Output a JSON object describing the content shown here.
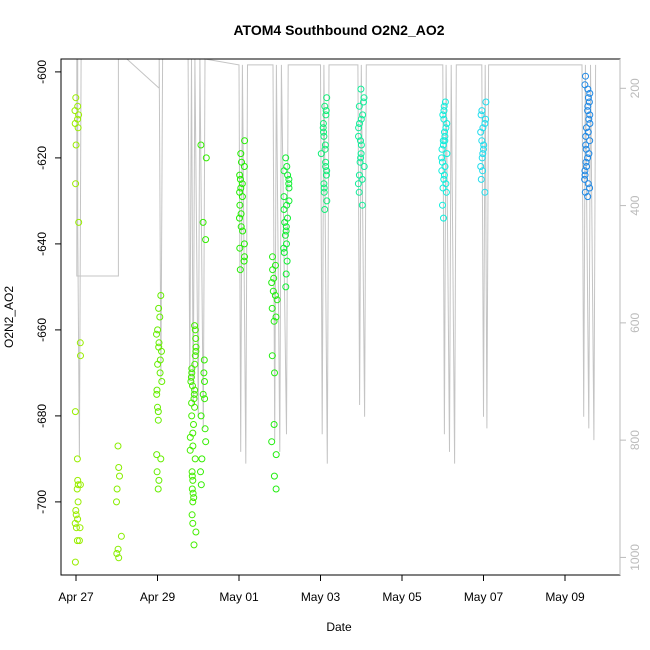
{
  "chart_data": {
    "type": "scatter",
    "title": "ATOM4 Southbound O2N2_AO2",
    "xlabel": "Date",
    "ylabel": "O2N2_AO2",
    "x_ticks": [
      "Apr 27",
      "Apr 29",
      "May 01",
      "May 03",
      "May 05",
      "May 07",
      "May 09"
    ],
    "y_ticks": [
      -700,
      -680,
      -660,
      -640,
      -620,
      -600
    ],
    "y2_ticks": [
      200,
      400,
      600,
      800,
      1000
    ],
    "xlim": [
      "2016-04-26T11:00",
      "2016-05-10T04:00"
    ],
    "ylim": [
      -717,
      -597
    ],
    "y2lim": [
      1030,
      150
    ],
    "grid": false,
    "legend": "none",
    "series": [
      {
        "x": "2016-04-27T01:00",
        "color": "#99ee00",
        "values": [
          -704,
          -700,
          -714,
          -703,
          -709,
          -695,
          -705,
          -706,
          -696,
          -697,
          -706,
          -709,
          -610,
          -612,
          -608,
          -617,
          -635,
          -626,
          -613,
          -611,
          -606,
          -609,
          -663,
          -666,
          -679,
          -690,
          -696,
          -702
        ]
      },
      {
        "x": "2016-04-28T01:00",
        "color": "#88ee00",
        "values": [
          -687,
          -692,
          -694,
          -697,
          -700,
          -708,
          -711,
          -712,
          -713
        ]
      },
      {
        "x": "2016-04-29T01:00",
        "color": "#66ee00",
        "values": [
          -697,
          -693,
          -690,
          -681,
          -679,
          -675,
          -672,
          -668,
          -665,
          -663,
          -660,
          -657,
          -655,
          -652,
          -670,
          -674,
          -678,
          -695,
          -689,
          -661,
          -664,
          -667
        ]
      },
      {
        "x": "2016-04-29T21:00",
        "color": "#44ee00",
        "values": [
          -710,
          -707,
          -703,
          -700,
          -698,
          -695,
          -690,
          -687,
          -684,
          -680,
          -677,
          -674,
          -672,
          -670,
          -668,
          -666,
          -664,
          -662,
          -660,
          -659,
          -676,
          -682,
          -685,
          -693,
          -697,
          -671,
          -673,
          -675,
          -678,
          -669,
          -665,
          -688,
          -694,
          -699,
          -705
        ]
      },
      {
        "x": "2016-04-30T03:00",
        "color": "#33ee00",
        "values": [
          -617,
          -620,
          -635,
          -639,
          -670,
          -675,
          -680,
          -683,
          -686,
          -690,
          -693,
          -696,
          -676,
          -672,
          -667
        ]
      },
      {
        "x": "2016-05-01T02:00",
        "color": "#22ee00",
        "values": [
          -616,
          -619,
          -622,
          -625,
          -628,
          -631,
          -634,
          -637,
          -640,
          -643,
          -646,
          -629,
          -624,
          -633,
          -626,
          -641,
          -621,
          -627,
          -636,
          -644
        ]
      },
      {
        "x": "2016-05-01T21:00",
        "color": "#22ee10",
        "values": [
          -643,
          -646,
          -649,
          -652,
          -655,
          -658,
          -666,
          -670,
          -682,
          -686,
          -689,
          -694,
          -697,
          -648,
          -653,
          -657,
          -645,
          -651
        ]
      },
      {
        "x": "2016-05-02T04:00",
        "color": "#11ee33",
        "values": [
          -620,
          -623,
          -626,
          -629,
          -632,
          -635,
          -638,
          -641,
          -644,
          -647,
          -650,
          -622,
          -627,
          -631,
          -637,
          -642,
          -625,
          -634,
          -640,
          -630,
          -624,
          -636
        ]
      },
      {
        "x": "2016-05-03T02:00",
        "color": "#11ee77",
        "values": [
          -606,
          -609,
          -612,
          -615,
          -618,
          -621,
          -624,
          -627,
          -630,
          -632,
          -610,
          -614,
          -619,
          -623,
          -628,
          -608,
          -613,
          -617,
          -622,
          -626
        ]
      },
      {
        "x": "2016-05-04T00:00",
        "color": "#11ee99",
        "values": [
          -604,
          -607,
          -610,
          -613,
          -616,
          -619,
          -622,
          -625,
          -628,
          -631,
          -608,
          -612,
          -617,
          -621,
          -626,
          -606,
          -611,
          -615,
          -620,
          -624
        ]
      },
      {
        "x": "2016-05-06T01:00",
        "color": "#11eedd",
        "values": [
          -607,
          -610,
          -613,
          -616,
          -619,
          -622,
          -625,
          -628,
          -631,
          -634,
          -609,
          -612,
          -615,
          -618,
          -621,
          -624,
          -627,
          -611,
          -614,
          -617,
          -620,
          -623,
          -626,
          -608,
          -616
        ]
      },
      {
        "x": "2016-05-07T00:00",
        "color": "#22ddee",
        "values": [
          -607,
          -610,
          -613,
          -616,
          -619,
          -622,
          -625,
          -628,
          -611,
          -614,
          -617,
          -620,
          -623,
          -609,
          -612,
          -618
        ]
      },
      {
        "x": "2016-05-09T13:00",
        "color": "#1e88e5",
        "values": [
          -601,
          -604,
          -607,
          -610,
          -613,
          -616,
          -619,
          -622,
          -625,
          -628,
          -603,
          -606,
          -609,
          -612,
          -615,
          -618,
          -621,
          -624,
          -627,
          -608,
          -611,
          -614,
          -617,
          -620,
          -623,
          -626,
          -605,
          -629
        ]
      }
    ]
  }
}
